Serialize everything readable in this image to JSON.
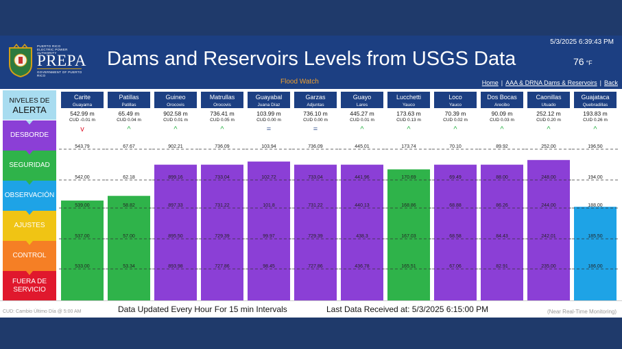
{
  "header": {
    "logo_org": [
      "PUERTO RICO",
      "ELECTRIC POWER AUTHORITY"
    ],
    "logo_name": "PREPA",
    "logo_gov": "GOVERNMENT OF PUERTO RICO",
    "title": "Dams and Reservoirs Levels from USGS Data",
    "datetime": "5/3/2025 6:39:43 PM",
    "temperature": "76",
    "temperature_unit": "°F",
    "watch": "Flood Watch",
    "nav": [
      "Home",
      "AAA & DRNA Dams & Reservoirs",
      "Back"
    ]
  },
  "levels": {
    "header_line1": "NIVELES DE",
    "header_line2": "ALERTA",
    "bands": [
      {
        "label": "DESBORDE",
        "color": "#8b3fd6"
      },
      {
        "label": "SEGURIDAD",
        "color": "#2fb34a"
      },
      {
        "label": "OBSERVACIÓN",
        "color": "#1ea3e6"
      },
      {
        "label": "AJUSTES",
        "color": "#f0c414"
      },
      {
        "label": "CONTROL",
        "color": "#f57f25"
      },
      {
        "label": "FUERA DE SERVICIO",
        "color": "#e0182d"
      }
    ]
  },
  "colors": {
    "purple": "#8b3fd6",
    "green": "#2fb34a",
    "blue": "#1ea3e6",
    "header_box": "#1c3f82"
  },
  "chart_data": {
    "type": "bar",
    "units": "m",
    "reservoirs": [
      {
        "name": "Carite",
        "town": "Guayama",
        "level": "542.99",
        "cud": "CUD -0.01 m",
        "trend": "down",
        "status": "green",
        "thresholds": [
          "543.79",
          "542.00",
          "539.00",
          "537.00",
          "533.00"
        ],
        "fill": 0.64
      },
      {
        "name": "Patillas",
        "town": "Patillas",
        "level": "65.49",
        "cud": "CUD 0.04 m",
        "trend": "up",
        "status": "green",
        "thresholds": [
          "67.67",
          "62.18",
          "58.82",
          "57.00",
          "53.34"
        ],
        "fill": 0.67
      },
      {
        "name": "Guineo",
        "town": "Orocovis",
        "level": "902.58",
        "cud": "CUD 0.01 m",
        "trend": "up",
        "status": "purple",
        "thresholds": [
          "902.21",
          "899.16",
          "897.33",
          "895.50",
          "893.98"
        ],
        "fill": 0.87
      },
      {
        "name": "Matrullas",
        "town": "Orocovis",
        "level": "736.41",
        "cud": "CUD 0.05 m",
        "trend": "up",
        "status": "purple",
        "thresholds": [
          "736.09",
          "733.04",
          "731.22",
          "729.39",
          "727.86"
        ],
        "fill": 0.87
      },
      {
        "name": "Guayabal",
        "town": "Juana Díaz",
        "level": "103.99",
        "cud": "CUD 0.00 m",
        "trend": "equal",
        "status": "purple",
        "thresholds": [
          "103.94",
          "102.72",
          "101.8",
          "99.97",
          "98.45"
        ],
        "fill": 0.89
      },
      {
        "name": "Garzas",
        "town": "Adjuntas",
        "level": "736.10",
        "cud": "CUD 0.00 m",
        "trend": "equal",
        "status": "purple",
        "thresholds": [
          "736.09",
          "733.04",
          "731.22",
          "729.39",
          "727.86"
        ],
        "fill": 0.87
      },
      {
        "name": "Guayo",
        "town": "Lares",
        "level": "445.27",
        "cud": "CUD 0.01 m",
        "trend": "up",
        "status": "purple",
        "thresholds": [
          "445.01",
          "441.96",
          "440.13",
          "438.3",
          "436.78"
        ],
        "fill": 0.87
      },
      {
        "name": "Lucchetti",
        "town": "Yauco",
        "level": "173.63",
        "cud": "CUD 0.13 m",
        "trend": "up",
        "status": "green",
        "thresholds": [
          "173.74",
          "170.69",
          "168.86",
          "167.03",
          "165.51"
        ],
        "fill": 0.84
      },
      {
        "name": "Loco",
        "town": "Yauco",
        "level": "70.39",
        "cud": "CUD 0.02 m",
        "trend": "up",
        "status": "purple",
        "thresholds": [
          "70.10",
          "69.49",
          "68.88",
          "68.58",
          "67.06"
        ],
        "fill": 0.87
      },
      {
        "name": "Dos Bocas",
        "town": "Arecibo",
        "level": "90.09",
        "cud": "CUD 0.03 m",
        "trend": "up",
        "status": "purple",
        "thresholds": [
          "89.92",
          "88.00",
          "86.26",
          "84.43",
          "82.91"
        ],
        "fill": 0.87
      },
      {
        "name": "Caonillas",
        "town": "Utuado",
        "level": "252.12",
        "cud": "CUD 0.20 m",
        "trend": "up",
        "status": "purple",
        "thresholds": [
          "252.00",
          "248.00",
          "244.00",
          "242.01",
          "235.00"
        ],
        "fill": 0.9
      },
      {
        "name": "Guajataca",
        "town": "Quebradillas",
        "level": "193.83",
        "cud": "CUD 0.26 m",
        "trend": "up",
        "status": "blue",
        "thresholds": [
          "196.50",
          "194.00",
          "188.00",
          "185.50",
          "186.00"
        ],
        "fill": 0.6
      }
    ]
  },
  "footer": {
    "cud_note": "CUD: Cambio Último Día @ 5:00 AM",
    "updated": "Data Updated Every Hour For 15 min Intervals",
    "last_received": "Last Data Received at:  5/3/2025 6:15:00 PM",
    "monitoring": "(Near Real-Time Monitoring)"
  }
}
